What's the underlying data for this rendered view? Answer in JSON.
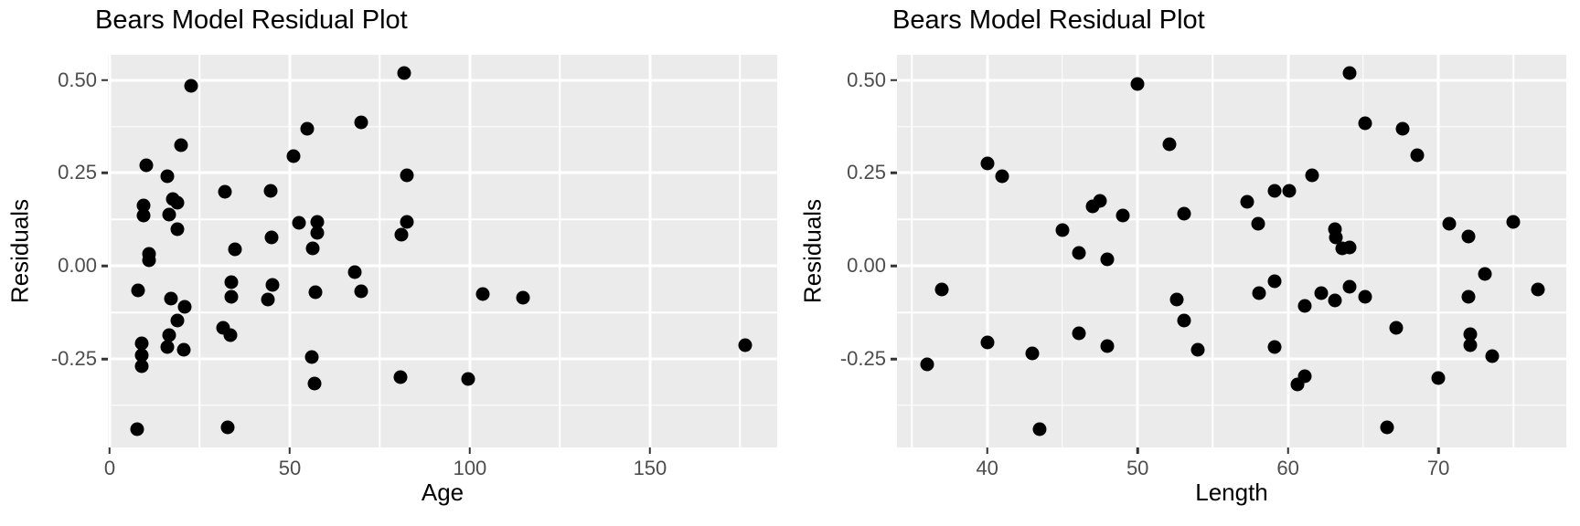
{
  "figure": {
    "background": "#FFFFFF",
    "panel_background": "#EBEBEB",
    "gridline_color": "#FFFFFF",
    "point_color": "#000000",
    "tick_mark_color": "#333333",
    "tick_label_color": "#4D4D4D",
    "title_color": "#000000"
  },
  "chart_data": [
    {
      "type": "scatter",
      "title": "Bears Model Residual Plot",
      "xlabel": "Age",
      "ylabel": "Residuals",
      "legend": "none",
      "grid": "white major and minor gridlines on gray panel",
      "xlim": [
        -0.5,
        185.3
      ],
      "ylim": [
        -0.488,
        0.568
      ],
      "xticks": [
        0,
        50,
        100,
        150
      ],
      "xtick_labels": [
        "0",
        "50",
        "100",
        "150"
      ],
      "xticks_minor": [
        25,
        75,
        125,
        175
      ],
      "yticks": [
        0.5,
        0.25,
        0.0,
        -0.25
      ],
      "ytick_labels": [
        "0.50",
        "0.25",
        "0.00",
        "-0.25"
      ],
      "yticks_minor": [
        0.375,
        0.125,
        -0.125,
        -0.375
      ],
      "points": [
        [
          81.7,
          0.52
        ],
        [
          22.6,
          0.485
        ],
        [
          69.7,
          0.386
        ],
        [
          54.9,
          0.368
        ],
        [
          19.9,
          0.326
        ],
        [
          50.9,
          0.296
        ],
        [
          10.2,
          0.272
        ],
        [
          82.5,
          0.243
        ],
        [
          15.9,
          0.242
        ],
        [
          44.7,
          0.203
        ],
        [
          32.0,
          0.2
        ],
        [
          17.5,
          0.179
        ],
        [
          18.7,
          0.17
        ],
        [
          9.5,
          0.162
        ],
        [
          16.5,
          0.139
        ],
        [
          9.5,
          0.135
        ],
        [
          82.5,
          0.119
        ],
        [
          57.5,
          0.118
        ],
        [
          52.5,
          0.115
        ],
        [
          18.9,
          0.098
        ],
        [
          57.6,
          0.09
        ],
        [
          81.1,
          0.085
        ],
        [
          44.9,
          0.076
        ],
        [
          34.9,
          0.046
        ],
        [
          56.4,
          0.048
        ],
        [
          10.8,
          0.033
        ],
        [
          10.8,
          0.015
        ],
        [
          68.0,
          -0.017
        ],
        [
          33.8,
          -0.044
        ],
        [
          45.2,
          -0.052
        ],
        [
          7.8,
          -0.066
        ],
        [
          69.7,
          -0.067
        ],
        [
          57.0,
          -0.07
        ],
        [
          103.6,
          -0.075
        ],
        [
          33.8,
          -0.083
        ],
        [
          114.8,
          -0.086
        ],
        [
          17.0,
          -0.088
        ],
        [
          44.0,
          -0.091
        ],
        [
          20.8,
          -0.111
        ],
        [
          18.9,
          -0.146
        ],
        [
          31.5,
          -0.167
        ],
        [
          16.5,
          -0.185
        ],
        [
          33.6,
          -0.185
        ],
        [
          8.9,
          -0.208
        ],
        [
          176.4,
          -0.213
        ],
        [
          15.9,
          -0.217
        ],
        [
          20.6,
          -0.224
        ],
        [
          8.9,
          -0.24
        ],
        [
          56.0,
          -0.244
        ],
        [
          8.9,
          -0.269
        ],
        [
          80.7,
          -0.299
        ],
        [
          99.6,
          -0.303
        ],
        [
          56.9,
          -0.315
        ],
        [
          7.7,
          -0.438
        ],
        [
          32.8,
          -0.435
        ]
      ]
    },
    {
      "type": "scatter",
      "title": "Bears Model Residual Plot",
      "xlabel": "Length",
      "ylabel": "Residuals",
      "legend": "none",
      "grid": "white major and minor gridlines on gray panel",
      "xlim": [
        34.0,
        78.5
      ],
      "ylim": [
        -0.488,
        0.568
      ],
      "xticks": [
        40,
        50,
        60,
        70
      ],
      "xtick_labels": [
        "40",
        "50",
        "60",
        "70"
      ],
      "xticks_minor": [
        35,
        45,
        55,
        65,
        75
      ],
      "yticks": [
        0.5,
        0.25,
        0.0,
        -0.25
      ],
      "ytick_labels": [
        "0.50",
        "0.25",
        "0.00",
        "-0.25"
      ],
      "yticks_minor": [
        0.375,
        0.125,
        -0.125,
        -0.375
      ],
      "points": [
        [
          64.1,
          0.519
        ],
        [
          50.0,
          0.49
        ],
        [
          65.1,
          0.385
        ],
        [
          67.6,
          0.369
        ],
        [
          52.1,
          0.327
        ],
        [
          68.6,
          0.299
        ],
        [
          40.0,
          0.275
        ],
        [
          61.6,
          0.245
        ],
        [
          41.0,
          0.242
        ],
        [
          60.1,
          0.203
        ],
        [
          59.1,
          0.201
        ],
        [
          47.5,
          0.176
        ],
        [
          57.3,
          0.173
        ],
        [
          47.0,
          0.16
        ],
        [
          53.1,
          0.141
        ],
        [
          49.0,
          0.136
        ],
        [
          75.0,
          0.119
        ],
        [
          70.7,
          0.114
        ],
        [
          58.0,
          0.113
        ],
        [
          63.1,
          0.098
        ],
        [
          45.0,
          0.097
        ],
        [
          63.2,
          0.078
        ],
        [
          72.0,
          0.08
        ],
        [
          64.1,
          0.051
        ],
        [
          63.6,
          0.048
        ],
        [
          46.1,
          0.036
        ],
        [
          48.0,
          0.017
        ],
        [
          73.1,
          -0.022
        ],
        [
          59.1,
          -0.041
        ],
        [
          64.1,
          -0.055
        ],
        [
          76.6,
          -0.063
        ],
        [
          37.0,
          -0.064
        ],
        [
          58.1,
          -0.074
        ],
        [
          62.2,
          -0.074
        ],
        [
          65.1,
          -0.083
        ],
        [
          72.0,
          -0.083
        ],
        [
          52.6,
          -0.089
        ],
        [
          63.1,
          -0.093
        ],
        [
          61.1,
          -0.108
        ],
        [
          53.1,
          -0.147
        ],
        [
          67.2,
          -0.167
        ],
        [
          46.1,
          -0.181
        ],
        [
          72.1,
          -0.184
        ],
        [
          40.0,
          -0.206
        ],
        [
          72.1,
          -0.212
        ],
        [
          48.0,
          -0.216
        ],
        [
          59.1,
          -0.218
        ],
        [
          54.0,
          -0.226
        ],
        [
          43.0,
          -0.234
        ],
        [
          73.6,
          -0.243
        ],
        [
          36.0,
          -0.265
        ],
        [
          61.1,
          -0.297
        ],
        [
          70.0,
          -0.301
        ],
        [
          60.6,
          -0.319
        ],
        [
          66.6,
          -0.433
        ],
        [
          43.5,
          -0.439
        ]
      ]
    }
  ]
}
